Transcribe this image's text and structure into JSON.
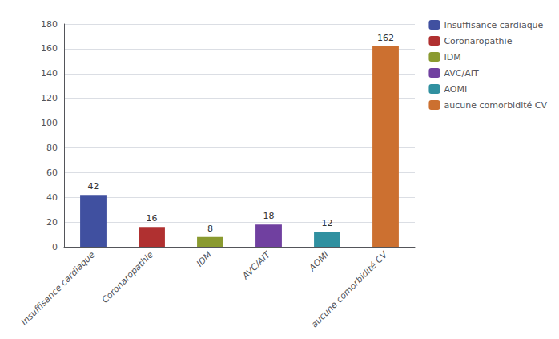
{
  "chart_data": {
    "type": "bar",
    "categories": [
      "Insuffisance cardiaque",
      "Coronaropathie",
      "IDM",
      "AVC/AIT",
      "AOMI",
      "aucune comorbidité CV"
    ],
    "values": [
      42,
      16,
      8,
      18,
      12,
      162
    ],
    "colors": [
      "#4050a0",
      "#b03030",
      "#8a9a30",
      "#7040a0",
      "#3090a0",
      "#cc7030"
    ],
    "ylim": [
      0,
      180
    ],
    "yticks": [
      0,
      20,
      40,
      60,
      80,
      100,
      120,
      140,
      160,
      180
    ],
    "grid": true,
    "legend": "upper right",
    "data_labels": true
  }
}
